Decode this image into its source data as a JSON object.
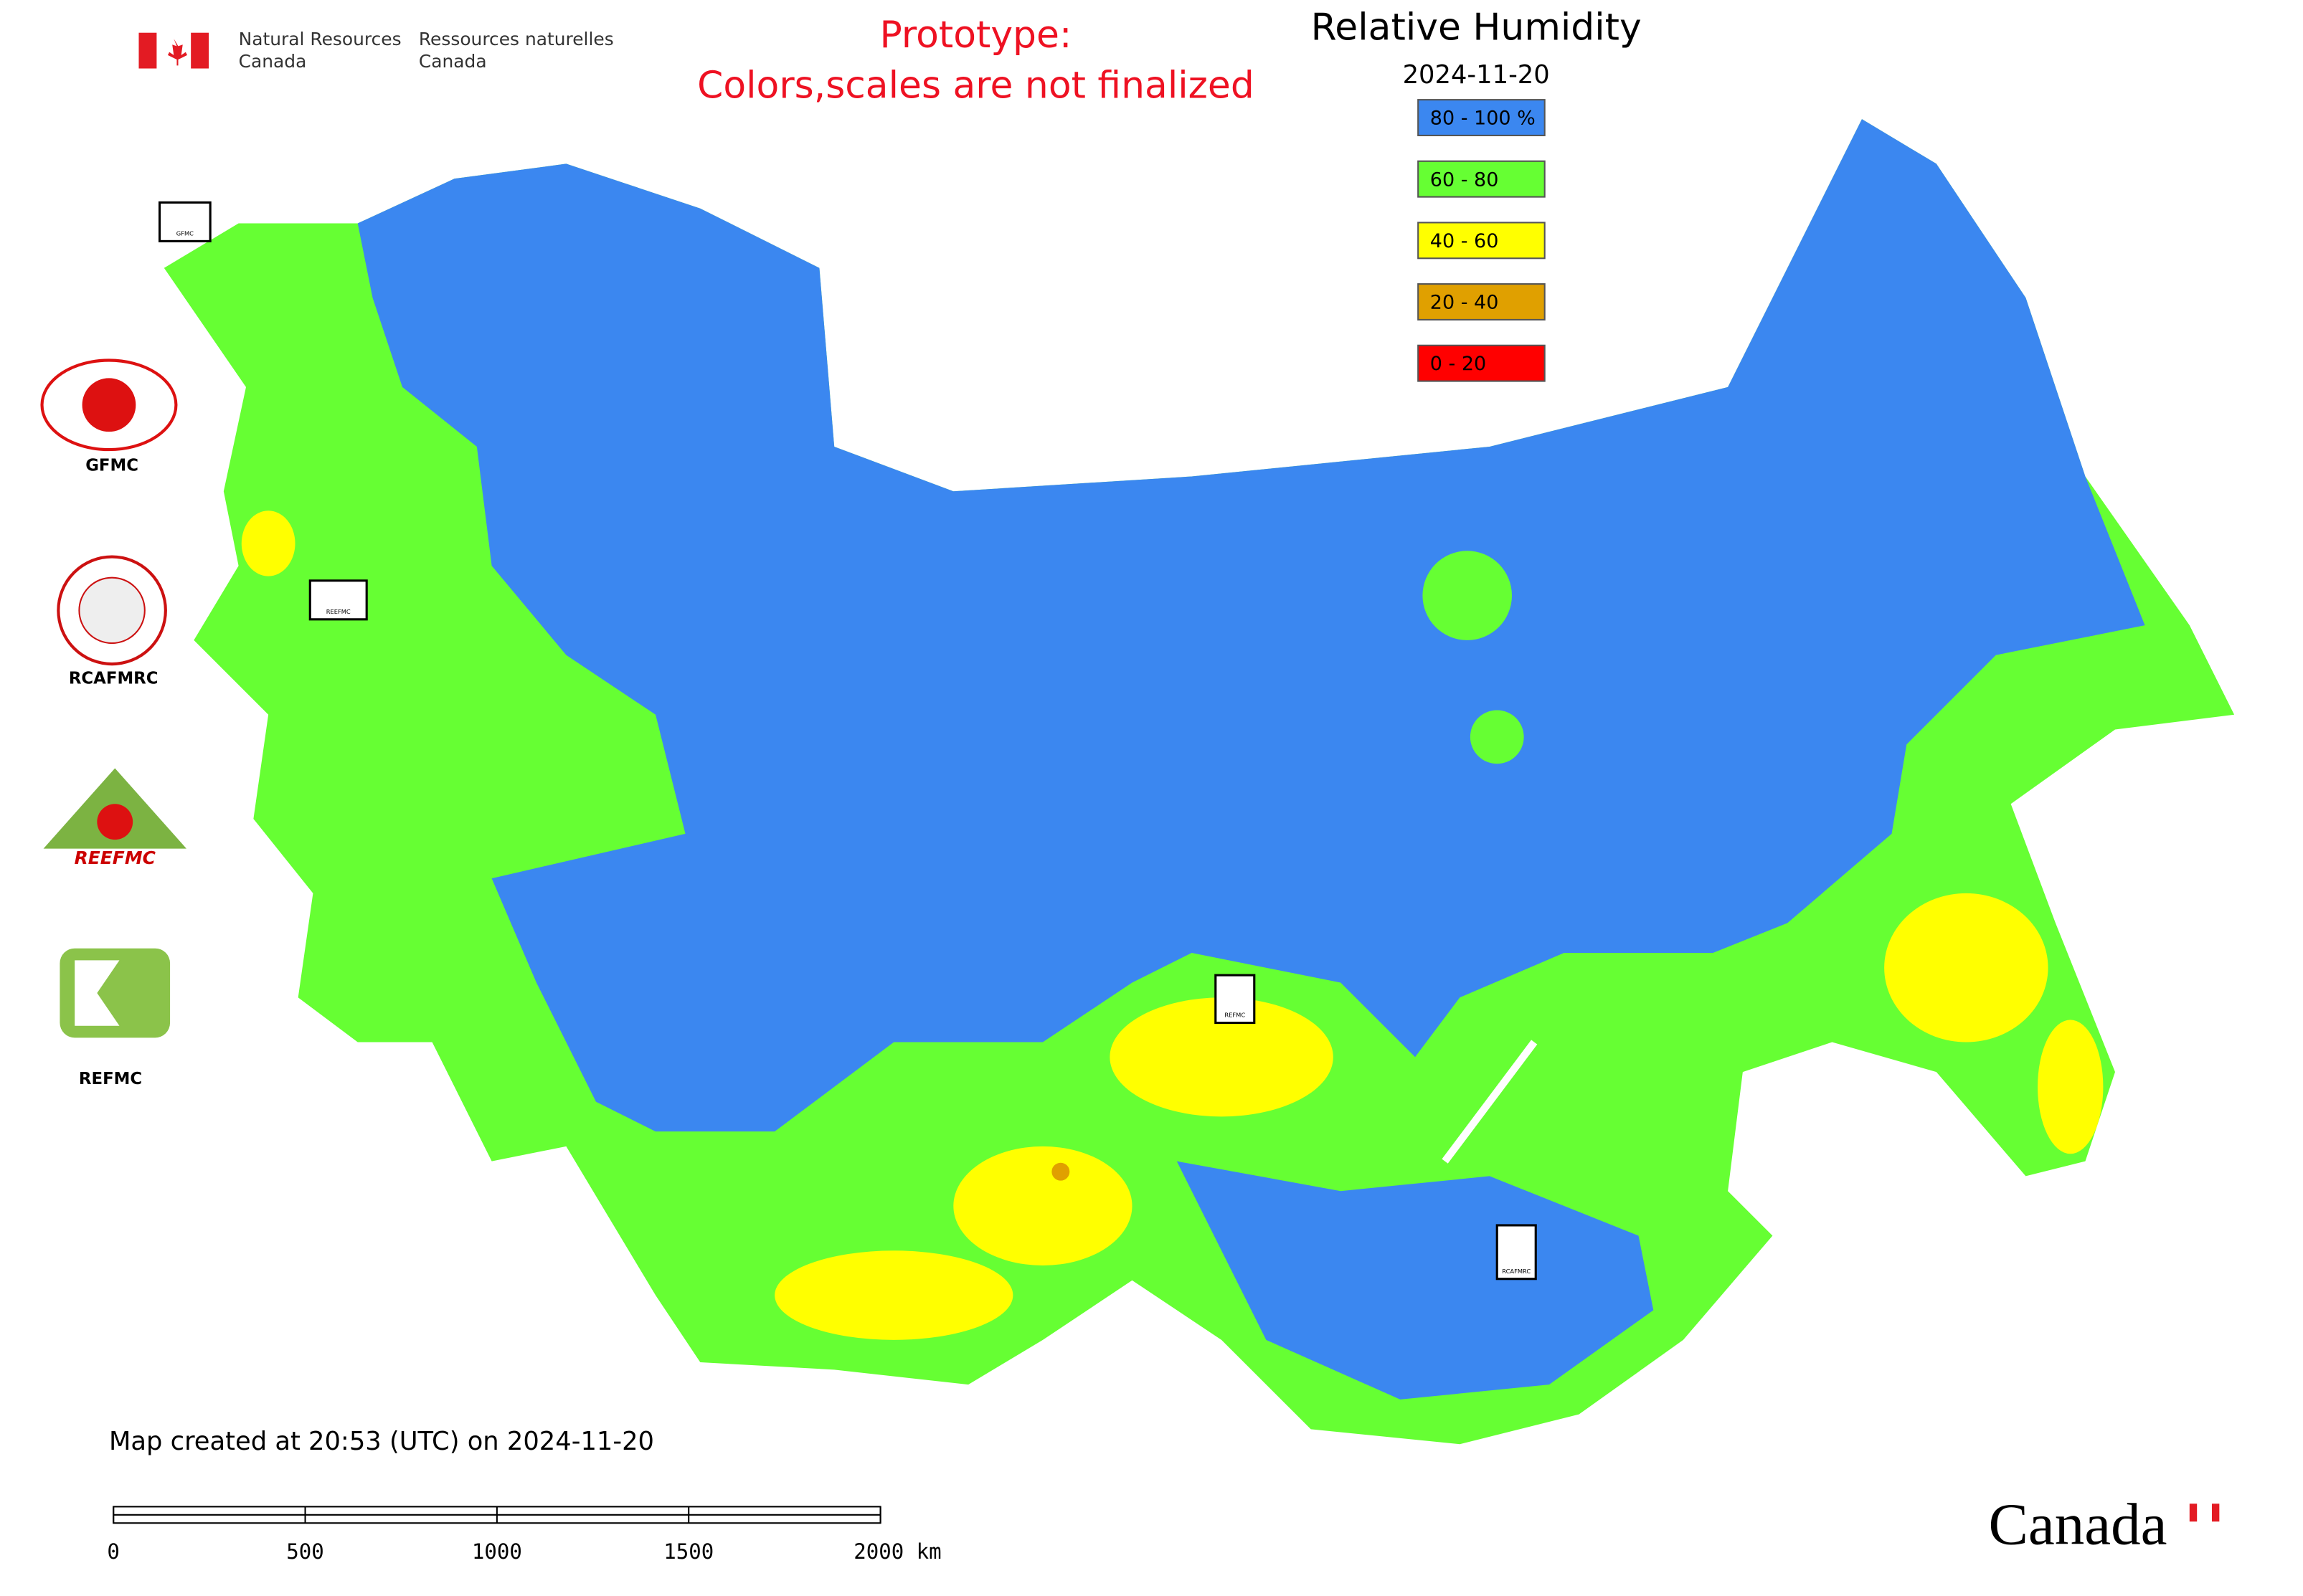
{
  "header": {
    "agency": [
      "Natural Resources",
      "Canada"
    ],
    "agency_fr": [
      "Ressources naturelles",
      "Canada"
    ],
    "notice": [
      "Prototype:",
      "Colors,scales are not finalized"
    ],
    "title": "Relative Humidity",
    "date": "2024-11-20"
  },
  "legend": [
    {
      "label": "80 - 100 %",
      "color": "#3b87f0"
    },
    {
      "label": "60 - 80",
      "color": "#66ff33"
    },
    {
      "label": "40 - 60",
      "color": "#ffff00"
    },
    {
      "label": "20 - 40",
      "color": "#e0a000"
    },
    {
      "label": "0 - 20",
      "color": "#ff0000"
    }
  ],
  "logos": [
    "GFMC",
    "RCAFMRC",
    "REEFMC",
    "REFMC"
  ],
  "map_markers": [
    "GFMC",
    "REEFMC",
    "REFMC",
    "RCAFMRC"
  ],
  "footer": {
    "created": "Map created at 20:53 (UTC) on 2024-11-20",
    "wordmark": "Canada"
  },
  "scale_bar": {
    "labels": [
      "0",
      "500",
      "1000",
      "1500",
      "2000 km"
    ]
  }
}
